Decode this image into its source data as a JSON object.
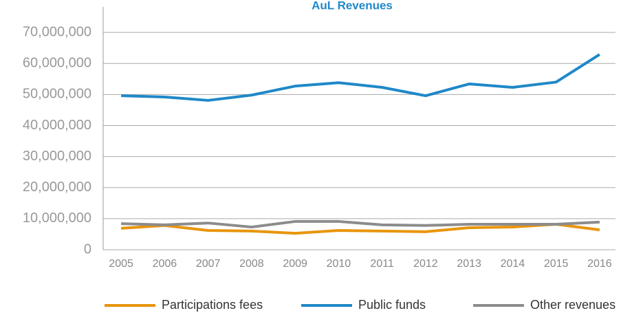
{
  "chart_data": {
    "type": "line",
    "title": "AuL Revenues",
    "categories": [
      "2005",
      "2006",
      "2007",
      "2008",
      "2009",
      "2010",
      "2011",
      "2012",
      "2013",
      "2014",
      "2015",
      "2016"
    ],
    "series": [
      {
        "name": "Participations fees",
        "color": "#e8950c",
        "values": [
          6900000,
          7800000,
          6200000,
          6000000,
          5300000,
          6200000,
          6000000,
          5800000,
          7100000,
          7300000,
          8200000,
          6400000
        ]
      },
      {
        "name": "Public funds",
        "color": "#1f88c8",
        "values": [
          49600000,
          49200000,
          48100000,
          49800000,
          52700000,
          53800000,
          52300000,
          49600000,
          53400000,
          52300000,
          54000000,
          62900000
        ]
      },
      {
        "name": "Other revenues",
        "color": "#8c8c8c",
        "values": [
          8400000,
          8000000,
          8600000,
          7300000,
          9100000,
          9100000,
          8000000,
          7800000,
          8200000,
          8200000,
          8200000,
          8900000
        ]
      }
    ],
    "ylim": [
      0,
      78000000
    ],
    "yticks": [
      0,
      {
        "value": 10000000,
        "label": "10,000,000"
      },
      {
        "value": 20000000,
        "label": "20,000,000"
      },
      {
        "value": 30000000,
        "label": "30,000,000"
      },
      {
        "value": 40000000,
        "label": "40,000,000"
      },
      {
        "value": 50000000,
        "label": "50,000,000"
      },
      {
        "value": 60000000,
        "label": "60,000,000"
      },
      {
        "value": 70000000,
        "label": "70,000,000"
      }
    ],
    "grid": true
  }
}
